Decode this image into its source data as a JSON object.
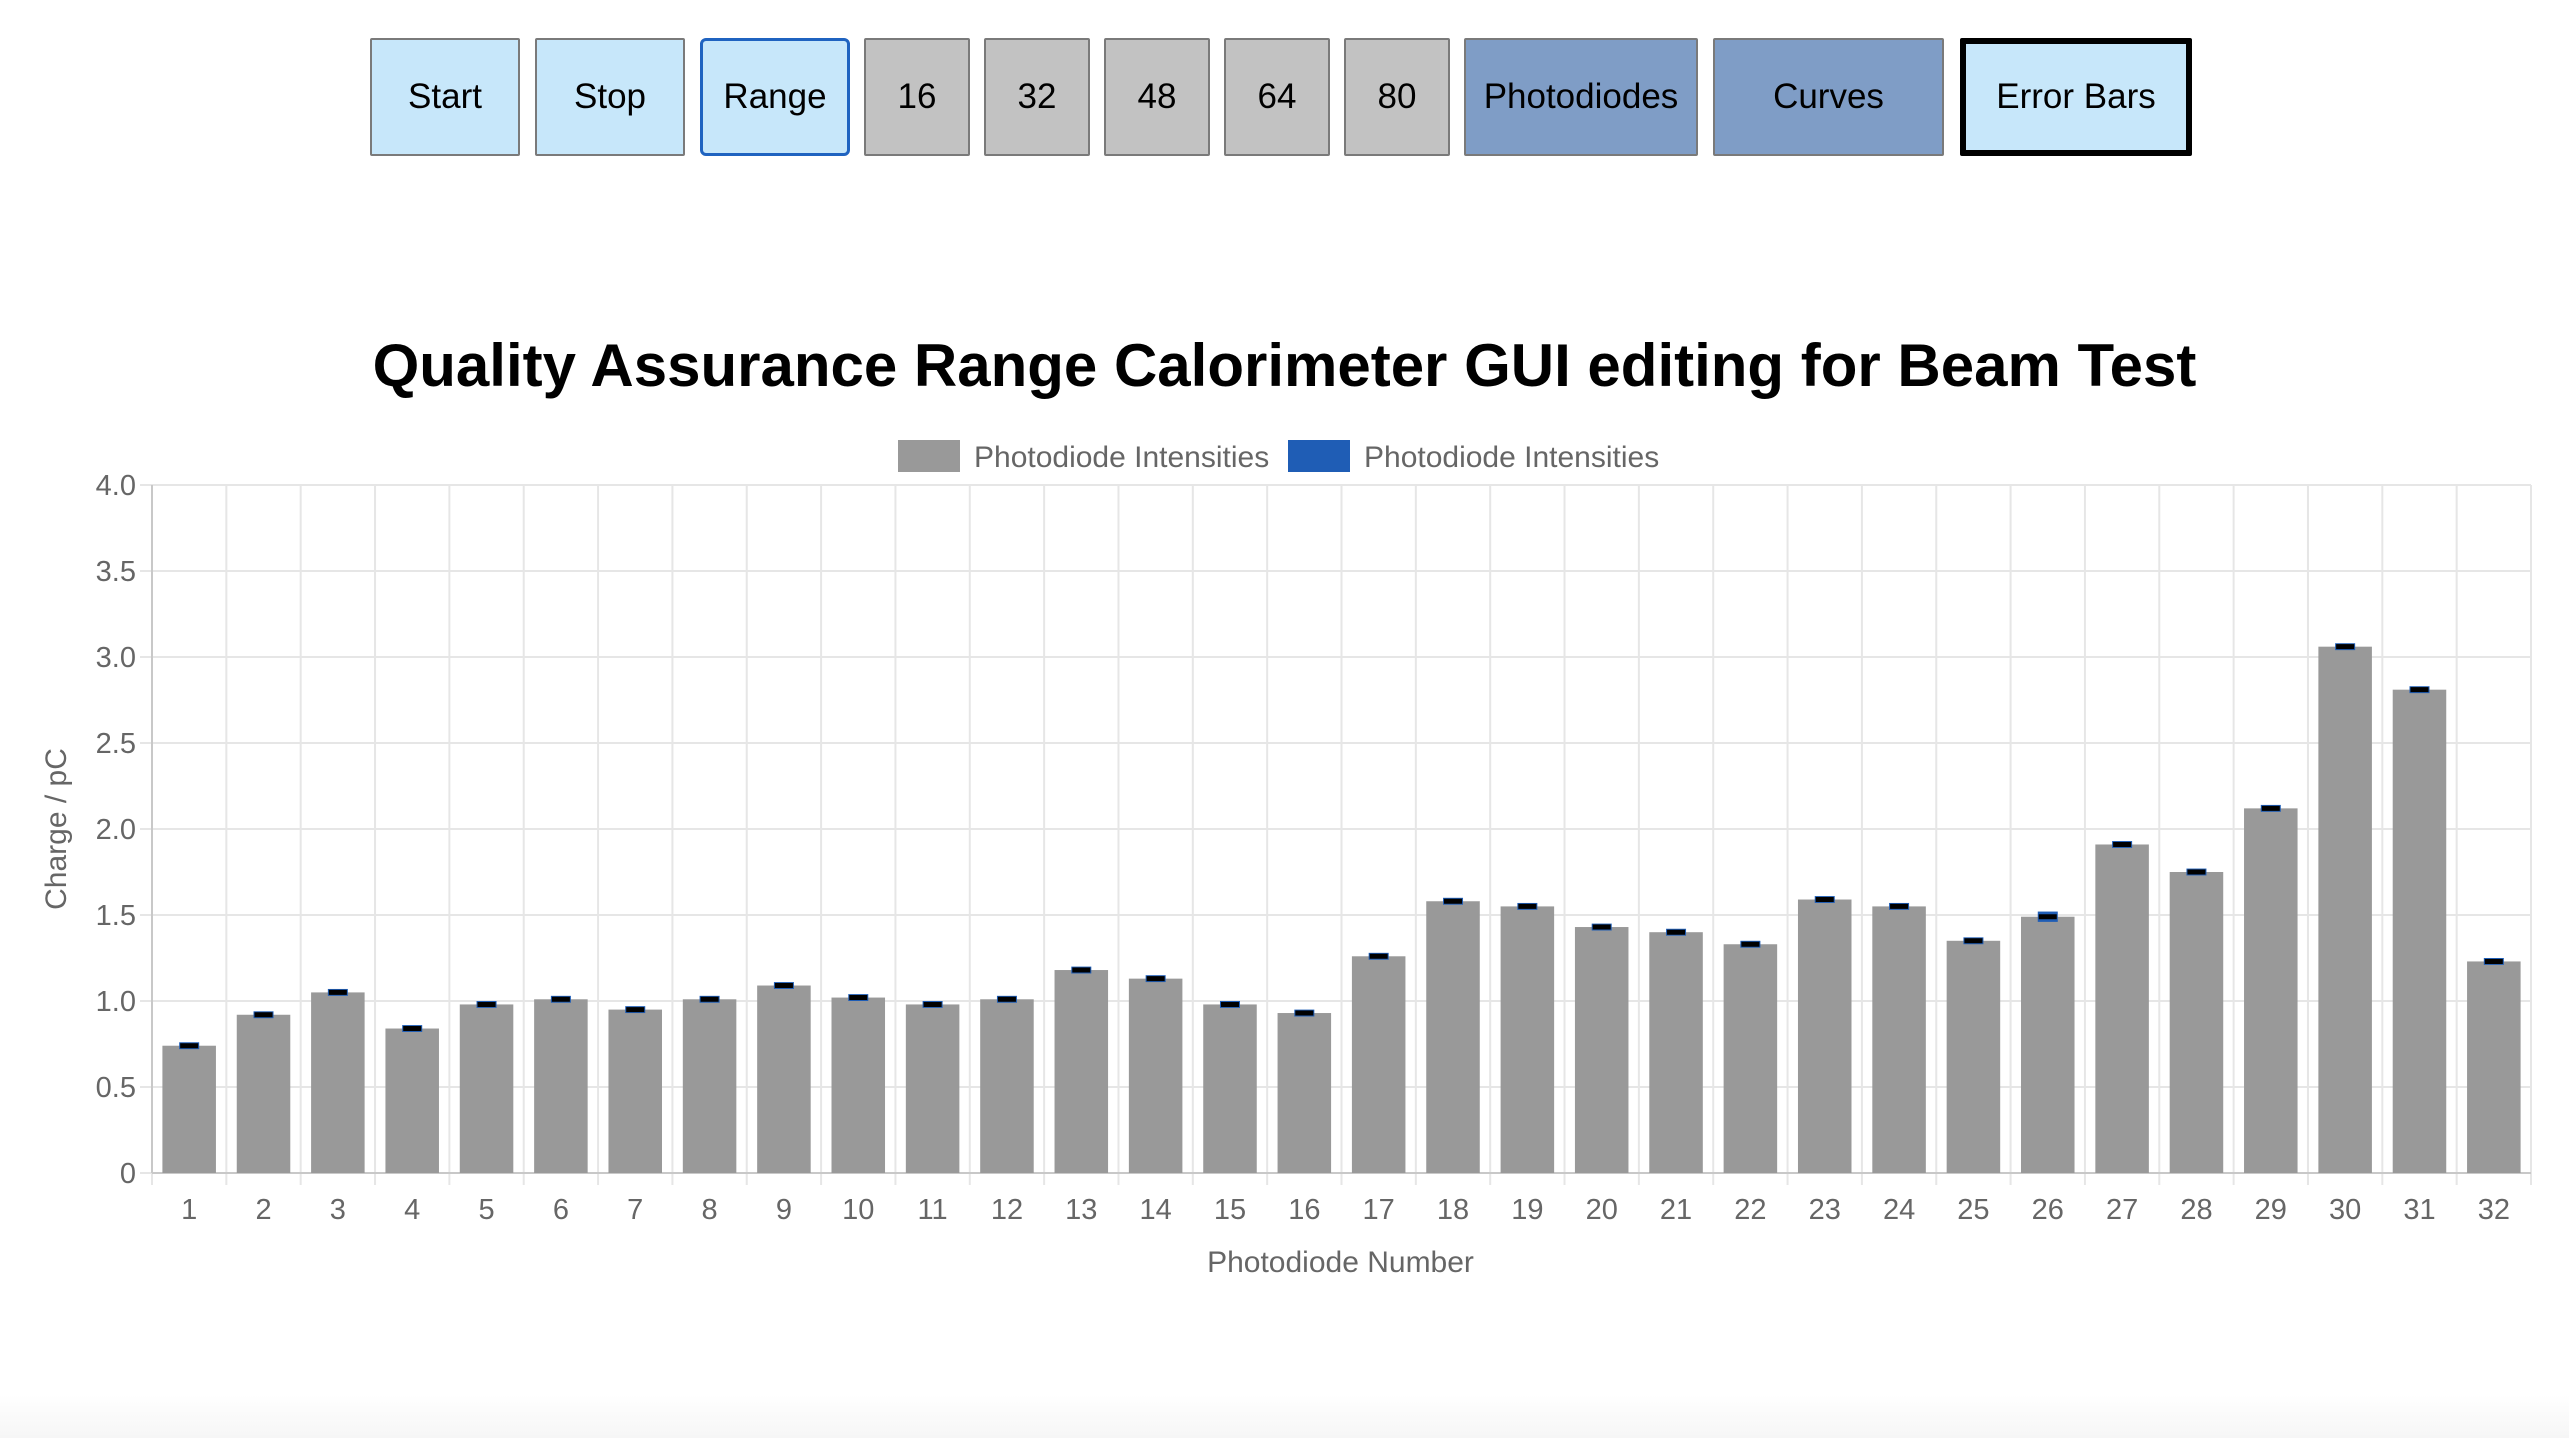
{
  "toolbar": {
    "start_label": "Start",
    "stop_label": "Stop",
    "range_label": "Range",
    "n16_label": "16",
    "n32_label": "32",
    "n48_label": "48",
    "n64_label": "64",
    "n80_label": "80",
    "photodiodes_label": "Photodiodes",
    "curves_label": "Curves",
    "errorbars_label": "Error Bars"
  },
  "colors": {
    "bar": "#999999",
    "errorbar": "#1f5db5",
    "errorcap": "#000000",
    "grid": "#e6e6e6",
    "axis_text": "#666666"
  },
  "chart_data": {
    "type": "bar",
    "title": "Quality Assurance Range Calorimeter GUI editing for Beam Test",
    "xlabel": "Photodiode Number",
    "ylabel": "Charge / pC",
    "ylim": [
      0,
      4
    ],
    "yticks": [
      "0",
      "0.5",
      "1.0",
      "1.5",
      "2.0",
      "2.5",
      "3.0",
      "3.5",
      "4.0"
    ],
    "grid": true,
    "legend_position": "top",
    "legend": [
      {
        "name": "Photodiode Intensities",
        "color": "#999999"
      },
      {
        "name": "Photodiode Intensities",
        "color": "#1f5db5"
      }
    ],
    "categories": [
      "1",
      "2",
      "3",
      "4",
      "5",
      "6",
      "7",
      "8",
      "9",
      "10",
      "11",
      "12",
      "13",
      "14",
      "15",
      "16",
      "17",
      "18",
      "19",
      "20",
      "21",
      "22",
      "23",
      "24",
      "25",
      "26",
      "27",
      "28",
      "29",
      "30",
      "31",
      "32"
    ],
    "series": [
      {
        "name": "Photodiode Intensities",
        "values": [
          0.74,
          0.92,
          1.05,
          0.84,
          0.98,
          1.01,
          0.95,
          1.01,
          1.09,
          1.02,
          0.98,
          1.01,
          1.18,
          1.13,
          0.98,
          0.93,
          1.26,
          1.58,
          1.55,
          1.43,
          1.4,
          1.33,
          1.59,
          1.55,
          1.35,
          1.49,
          1.91,
          1.75,
          2.12,
          3.06,
          2.81,
          1.23
        ]
      },
      {
        "name": "Photodiode Intensities",
        "errors": [
          0.02,
          0.02,
          0.02,
          0.02,
          0.02,
          0.02,
          0.02,
          0.02,
          0.02,
          0.02,
          0.02,
          0.02,
          0.02,
          0.02,
          0.02,
          0.02,
          0.02,
          0.02,
          0.02,
          0.02,
          0.02,
          0.02,
          0.02,
          0.02,
          0.02,
          0.03,
          0.02,
          0.02,
          0.02,
          0.02,
          0.02,
          0.02
        ]
      }
    ]
  }
}
